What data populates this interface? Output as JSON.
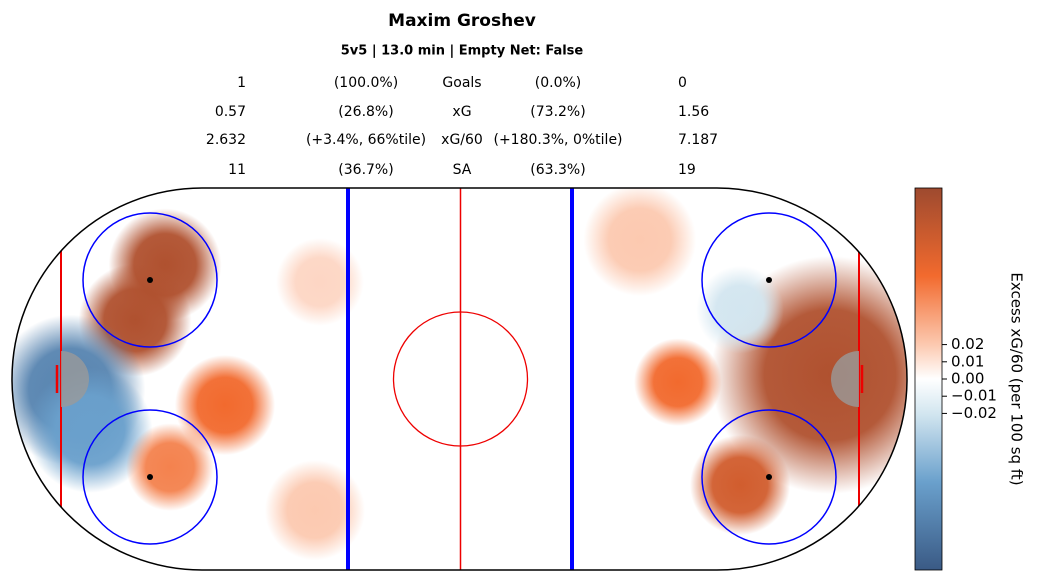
{
  "chart_data": {
    "type": "heatmap",
    "title": "Maxim Groshev",
    "subtitle": "5v5 | 13.0 min | Empty Net: False",
    "table": [
      [
        "1",
        "(100.0%)",
        "Goals",
        "(0.0%)",
        "0"
      ],
      [
        "0.57",
        "(26.8%)",
        "xG",
        "(73.2%)",
        "1.56"
      ],
      [
        "2.632",
        "(+3.4%, 66%tile)",
        "xG/60",
        "(+180.3%, 0%tile)",
        "7.187"
      ],
      [
        "11",
        "(36.7%)",
        "SA",
        "(63.3%)",
        "19"
      ]
    ],
    "x": [
      -65.8,
      -72.5,
      -87,
      -82.6,
      -52.4,
      -64.7,
      -31.2,
      -32.3,
      82.8,
      40.3,
      48.8,
      62.7,
      62.7
    ],
    "y": [
      25.4,
      13.1,
      -2.4,
      -11.4,
      -5.8,
      -19.6,
      21.6,
      -29.2,
      0.9,
      31,
      -0.7,
      -23.6,
      15.4
    ],
    "values": [
      0.1,
      0.1,
      -0.08,
      -0.06,
      0.06,
      0.05,
      0.015,
      0.02,
      0.1,
      0.02,
      0.06,
      0.08,
      -0.02
    ],
    "radius": [
      9,
      9,
      12,
      10,
      8,
      7,
      7,
      8,
      19,
      9,
      7,
      8,
      7
    ],
    "xlim": [
      -100,
      100
    ],
    "ylim": [
      -42.5,
      42.5
    ],
    "colorbar": {
      "label": "Excess xG/60 (per 100 sq ft)",
      "lim": [
        -0.111,
        0.111
      ],
      "ticks": [
        0.02,
        0.01,
        {
          "value": 0,
          "label": "0.00"
        },
        {
          "value": -0.01,
          "label": "−0.01"
        },
        {
          "value": -0.02,
          "label": "−0.02"
        }
      ]
    }
  }
}
